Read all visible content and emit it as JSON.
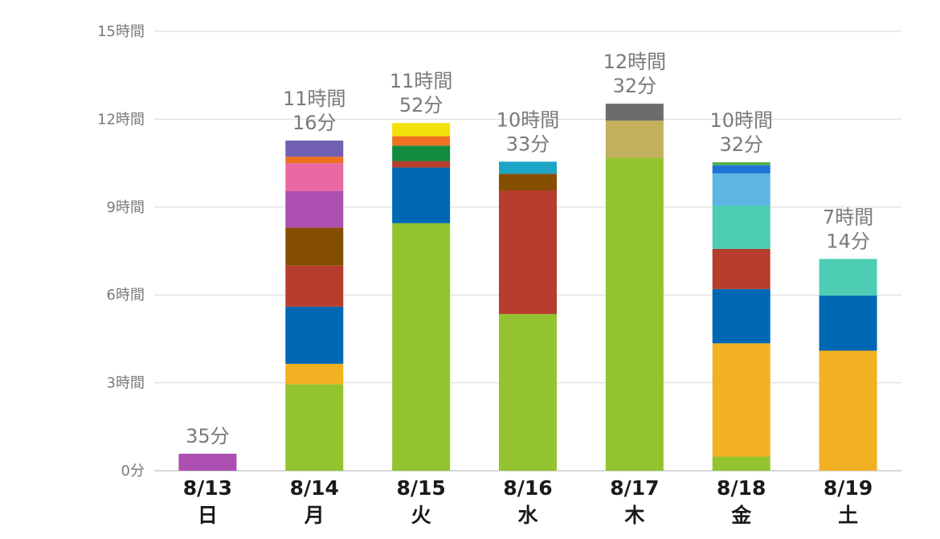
{
  "chart_data": {
    "type": "bar",
    "stacked": true,
    "unit": "hours",
    "ylim": [
      0,
      15
    ],
    "grid": true,
    "y_ticks": [
      {
        "value": 0,
        "label": "0分"
      },
      {
        "value": 3,
        "label": "3時間"
      },
      {
        "value": 6,
        "label": "6時間"
      },
      {
        "value": 9,
        "label": "9時間"
      },
      {
        "value": 12,
        "label": "12時間"
      },
      {
        "value": 15,
        "label": "15時間"
      }
    ],
    "categories": [
      {
        "date": "8/13",
        "day": "日",
        "total_lines": [
          "35分"
        ],
        "total_hours": 0.58,
        "segments": [
          {
            "color": "#ad4fb0",
            "hours": 0.58
          }
        ]
      },
      {
        "date": "8/14",
        "day": "月",
        "total_lines": [
          "11時間",
          "16分"
        ],
        "total_hours": 11.27,
        "segments": [
          {
            "color": "#93c42f",
            "hours": 2.95
          },
          {
            "color": "#f2b122",
            "hours": 0.7
          },
          {
            "color": "#0067b5",
            "hours": 1.95
          },
          {
            "color": "#b73d2c",
            "hours": 1.4
          },
          {
            "color": "#844f01",
            "hours": 1.3
          },
          {
            "color": "#ad4fb0",
            "hours": 1.25
          },
          {
            "color": "#eb69a3",
            "hours": 0.95
          },
          {
            "color": "#f07221",
            "hours": 0.22
          },
          {
            "color": "#7160b4",
            "hours": 0.55
          }
        ]
      },
      {
        "date": "8/15",
        "day": "火",
        "total_lines": [
          "11時間",
          "52分"
        ],
        "total_hours": 11.87,
        "segments": [
          {
            "color": "#93c42f",
            "hours": 8.45
          },
          {
            "color": "#0067b5",
            "hours": 1.9
          },
          {
            "color": "#b73d2c",
            "hours": 0.22
          },
          {
            "color": "#128c3c",
            "hours": 0.53
          },
          {
            "color": "#f07221",
            "hours": 0.32
          },
          {
            "color": "#f4e109",
            "hours": 0.45
          }
        ]
      },
      {
        "date": "8/16",
        "day": "水",
        "total_lines": [
          "10時間",
          "33分"
        ],
        "total_hours": 10.55,
        "segments": [
          {
            "color": "#93c42f",
            "hours": 5.35
          },
          {
            "color": "#b73d2c",
            "hours": 4.22
          },
          {
            "color": "#844f01",
            "hours": 0.57
          },
          {
            "color": "#1ca5c6",
            "hours": 0.41
          }
        ]
      },
      {
        "date": "8/17",
        "day": "木",
        "total_lines": [
          "12時間",
          "32分"
        ],
        "total_hours": 12.53,
        "segments": [
          {
            "color": "#93c42f",
            "hours": 10.68
          },
          {
            "color": "#c3b05c",
            "hours": 1.27
          },
          {
            "color": "#6c6c6c",
            "hours": 0.58
          }
        ]
      },
      {
        "date": "8/18",
        "day": "金",
        "total_lines": [
          "10時間",
          "32分"
        ],
        "total_hours": 10.53,
        "segments": [
          {
            "color": "#93c42f",
            "hours": 0.48
          },
          {
            "color": "#f2b122",
            "hours": 3.87
          },
          {
            "color": "#0067b5",
            "hours": 1.85
          },
          {
            "color": "#b73d2c",
            "hours": 1.37
          },
          {
            "color": "#4ccdb4",
            "hours": 1.48
          },
          {
            "color": "#5db5e4",
            "hours": 1.1
          },
          {
            "color": "#1d73d8",
            "hours": 0.28
          },
          {
            "color": "#4fb04a",
            "hours": 0.1
          }
        ]
      },
      {
        "date": "8/19",
        "day": "土",
        "total_lines": [
          "7時間",
          "14分"
        ],
        "total_hours": 7.23,
        "segments": [
          {
            "color": "#f2b122",
            "hours": 4.1
          },
          {
            "color": "#0067b5",
            "hours": 1.88
          },
          {
            "color": "#4ccdb4",
            "hours": 1.25
          }
        ]
      }
    ]
  }
}
